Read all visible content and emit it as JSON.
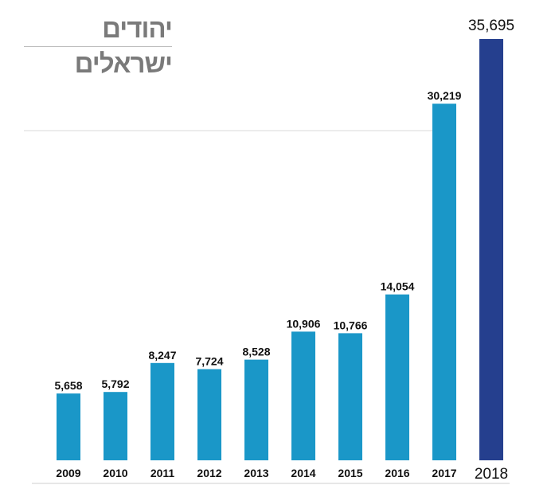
{
  "title": "יהודים ישראלים",
  "chart_data": {
    "type": "bar",
    "title": "יהודים ישראלים",
    "categories": [
      "2009",
      "2010",
      "2011",
      "2012",
      "2013",
      "2014",
      "2015",
      "2016",
      "2017",
      "2018"
    ],
    "values": [
      5658,
      5792,
      8247,
      7724,
      8528,
      10906,
      10766,
      14054,
      30219,
      35695
    ],
    "value_labels": [
      "5,658",
      "5,792",
      "8,247",
      "7,724",
      "8,528",
      "10,906",
      "10,766",
      "14,054",
      "30,219",
      "35,695"
    ],
    "ylim": [
      0,
      35695
    ],
    "grid": false,
    "legend": "none",
    "colors": {
      "bar": "#1a97c8",
      "highlight": "#253f8e"
    },
    "highlight_category": "2018"
  }
}
